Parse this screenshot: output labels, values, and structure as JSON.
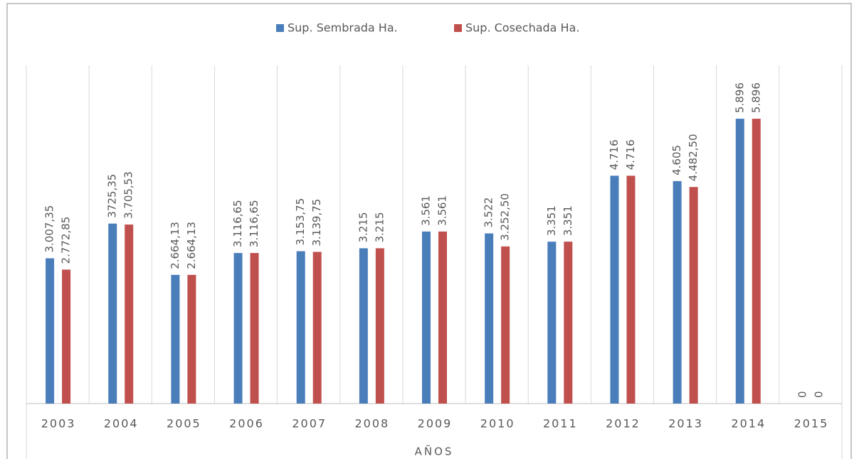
{
  "chart_data": {
    "type": "bar",
    "xlabel": "AÑOS",
    "categories": [
      "2003",
      "2004",
      "2005",
      "2006",
      "2007",
      "2008",
      "2009",
      "2010",
      "2011",
      "2012",
      "2013",
      "2014",
      "2015"
    ],
    "series": [
      {
        "name": "Sup. Sembrada Ha.",
        "color": "#4a7ebb",
        "values": [
          3007.35,
          3725.35,
          2664.13,
          3116.65,
          3153.75,
          3215,
          3561,
          3522,
          3351,
          4716,
          4605,
          5896,
          0
        ],
        "value_labels": [
          "3.007,35",
          "3725,35",
          "2.664,13",
          "3.116,65",
          "3.153,75",
          "3.215",
          "3.561",
          "3.522",
          "3.351",
          "4.716",
          "4.605",
          "5.896",
          "0"
        ]
      },
      {
        "name": "Sup. Cosechada Ha.",
        "color": "#c0504d",
        "values": [
          2772.85,
          3705.53,
          2664.13,
          3116.65,
          3139.75,
          3215,
          3561,
          3252.5,
          3351,
          4716,
          4482.5,
          5896,
          0
        ],
        "value_labels": [
          "2.772,85",
          "3.705,53",
          "2.664,13",
          "3.116,65",
          "3.139,75",
          "3.215",
          "3.561",
          "3.252,50",
          "3.351",
          "4.716",
          "4.482,50",
          "5.896",
          "0"
        ]
      }
    ],
    "ylim": [
      0,
      7000
    ],
    "legend": "top"
  }
}
